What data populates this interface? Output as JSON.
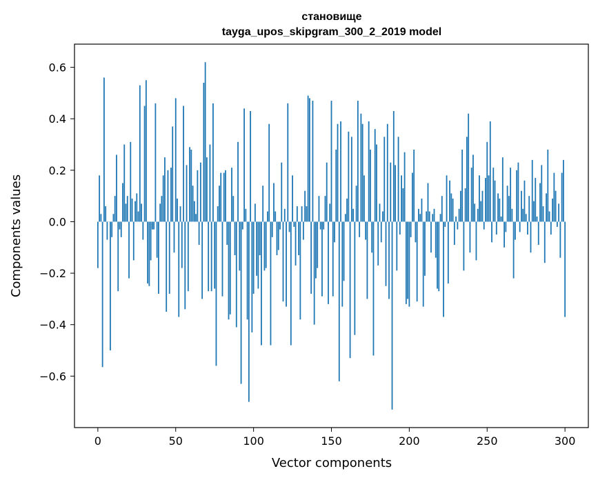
{
  "chart_data": {
    "type": "bar",
    "title": "становище",
    "subtitle": "tayga_upos_skipgram_300_2_2019 model",
    "xlabel": "Vector components",
    "ylabel": "Components values",
    "xlim": [
      -15,
      315
    ],
    "ylim": [
      -0.8,
      0.69
    ],
    "bar_color": "#1f77b4",
    "xticks": [
      0,
      50,
      100,
      150,
      200,
      250,
      300
    ],
    "xtick_labels": [
      "0",
      "50",
      "100",
      "150",
      "200",
      "250",
      "300"
    ],
    "yticks": [
      -0.6,
      -0.4,
      -0.2,
      0.0,
      0.2,
      0.4,
      0.6
    ],
    "ytick_labels": [
      "−0.6",
      "−0.4",
      "−0.2",
      "0.0",
      "0.2",
      "0.4",
      "0.6"
    ],
    "values": [
      -0.18,
      0.18,
      0.03,
      -0.565,
      0.56,
      0.06,
      -0.07,
      0.0,
      -0.5,
      -0.06,
      0.03,
      0.1,
      0.26,
      -0.27,
      -0.03,
      -0.06,
      0.15,
      0.3,
      0.07,
      0.1,
      -0.22,
      0.31,
      0.09,
      -0.15,
      0.08,
      0.11,
      0.04,
      0.53,
      0.07,
      -0.07,
      0.45,
      0.55,
      -0.24,
      -0.25,
      -0.15,
      -0.03,
      -0.03,
      0.46,
      -0.14,
      -0.28,
      0.07,
      0.1,
      0.18,
      0.25,
      -0.35,
      0.2,
      -0.28,
      0.21,
      0.37,
      -0.12,
      0.48,
      0.09,
      -0.37,
      0.06,
      -0.18,
      0.45,
      -0.34,
      0.22,
      -0.27,
      0.29,
      0.28,
      0.14,
      0.08,
      0.03,
      0.2,
      -0.09,
      0.23,
      -0.3,
      0.54,
      0.62,
      0.25,
      -0.27,
      0.3,
      -0.27,
      0.46,
      -0.26,
      -0.56,
      0.06,
      0.14,
      0.19,
      -0.29,
      0.19,
      0.2,
      -0.09,
      -0.38,
      -0.36,
      0.21,
      0.1,
      -0.13,
      -0.41,
      0.31,
      -0.19,
      -0.63,
      -0.03,
      0.44,
      0.05,
      -0.38,
      -0.7,
      0.43,
      -0.43,
      -0.28,
      0.07,
      -0.21,
      -0.26,
      -0.13,
      -0.48,
      0.14,
      -0.19,
      -0.18,
      0.04,
      0.38,
      -0.48,
      -0.06,
      0.15,
      0.04,
      -0.13,
      -0.11,
      -0.03,
      0.23,
      -0.31,
      0.05,
      -0.33,
      0.46,
      -0.04,
      -0.48,
      0.18,
      -0.02,
      -0.17,
      0.06,
      -0.13,
      -0.38,
      0.06,
      -0.07,
      0.12,
      0.06,
      0.49,
      0.48,
      -0.28,
      0.47,
      -0.4,
      -0.22,
      -0.18,
      0.1,
      -0.03,
      -0.29,
      -0.03,
      0.1,
      0.23,
      -0.32,
      0.07,
      0.47,
      -0.29,
      -0.08,
      0.28,
      0.38,
      -0.62,
      0.39,
      -0.33,
      -0.23,
      0.03,
      0.09,
      0.35,
      -0.53,
      0.33,
      0.05,
      -0.44,
      0.14,
      0.47,
      -0.06,
      0.42,
      0.38,
      0.18,
      -0.07,
      -0.3,
      0.39,
      0.28,
      -0.12,
      -0.52,
      0.36,
      0.3,
      -0.17,
      0.07,
      -0.08,
      0.04,
      0.33,
      -0.25,
      0.38,
      -0.3,
      0.23,
      -0.73,
      0.43,
      0.22,
      -0.19,
      0.33,
      -0.05,
      0.18,
      0.13,
      0.27,
      -0.32,
      -0.3,
      -0.33,
      -0.06,
      0.19,
      0.28,
      -0.08,
      -0.31,
      0.05,
      0.03,
      0.09,
      -0.33,
      -0.21,
      0.04,
      0.15,
      0.04,
      -0.12,
      0.03,
      0.05,
      -0.14,
      -0.26,
      -0.27,
      0.03,
      0.1,
      -0.37,
      -0.02,
      0.18,
      -0.24,
      0.16,
      0.11,
      0.09,
      -0.09,
      0.02,
      -0.03,
      0.05,
      0.12,
      0.28,
      -0.19,
      0.13,
      0.33,
      0.42,
      -0.12,
      0.21,
      0.26,
      0.07,
      -0.15,
      0.05,
      0.18,
      0.08,
      0.12,
      -0.03,
      0.17,
      0.31,
      0.18,
      0.39,
      -0.08,
      0.21,
      0.16,
      -0.05,
      0.11,
      0.09,
      0.02,
      0.25,
      -0.1,
      -0.04,
      0.14,
      0.1,
      0.21,
      0.05,
      -0.22,
      -0.07,
      0.2,
      0.23,
      -0.04,
      0.12,
      0.05,
      0.16,
      0.03,
      -0.05,
      0.1,
      -0.12,
      0.24,
      0.08,
      0.17,
      0.02,
      -0.09,
      0.15,
      0.22,
      0.06,
      -0.16,
      0.11,
      0.28,
      0.04,
      -0.05,
      0.09,
      0.19,
      0.12,
      -0.02,
      0.07,
      -0.14,
      0.19,
      0.24,
      -0.37
    ]
  }
}
